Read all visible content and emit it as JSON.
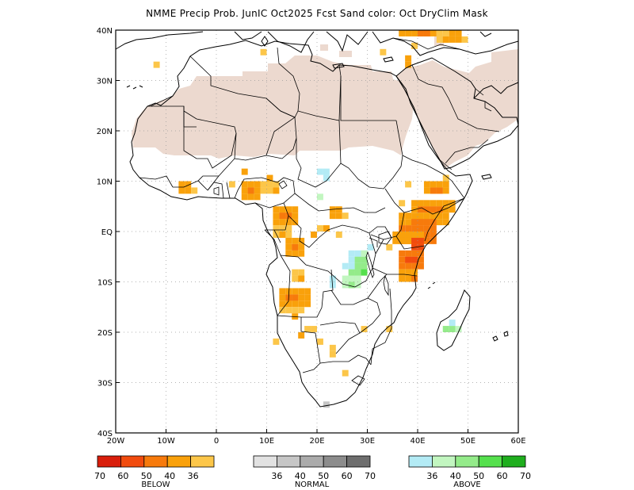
{
  "title": "NMME Precip Prob. JunIC  Oct2025 Fcst  Sand color: Oct DryClim Mask",
  "map": {
    "lon_range": [
      -20,
      60
    ],
    "lat_range": [
      -40,
      40
    ],
    "x_ticks": [
      {
        "value": -20,
        "label": "20W"
      },
      {
        "value": -10,
        "label": "10W"
      },
      {
        "value": 0,
        "label": "0"
      },
      {
        "value": 10,
        "label": "10E"
      },
      {
        "value": 20,
        "label": "20E"
      },
      {
        "value": 30,
        "label": "30E"
      },
      {
        "value": 40,
        "label": "40E"
      },
      {
        "value": 50,
        "label": "50E"
      },
      {
        "value": 60,
        "label": "60E"
      }
    ],
    "y_ticks": [
      {
        "value": 40,
        "label": "40N"
      },
      {
        "value": 30,
        "label": "30N"
      },
      {
        "value": 20,
        "label": "20N"
      },
      {
        "value": 10,
        "label": "10N"
      },
      {
        "value": 0,
        "label": "EQ"
      },
      {
        "value": -10,
        "label": "10S"
      },
      {
        "value": -20,
        "label": "20S"
      },
      {
        "value": -30,
        "label": "30S"
      },
      {
        "value": -40,
        "label": "40S"
      }
    ],
    "colors": {
      "dry_mask": "#ecd9cf",
      "border": "#000000",
      "grid": "#9a9a9a"
    }
  },
  "legend": {
    "below": {
      "title": "BELOW",
      "labels": [
        "70",
        "60",
        "50",
        "40",
        "36"
      ],
      "colors": [
        "#d91e0b",
        "#f14b0e",
        "#f77a0c",
        "#f9a10b",
        "#fcc649"
      ]
    },
    "normal": {
      "title": "NORMAL",
      "labels": [
        "36",
        "40",
        "50",
        "60",
        "70"
      ],
      "colors": [
        "#e2e2e2",
        "#c6c6c6",
        "#ababab",
        "#8c8c8c",
        "#6e6e6e"
      ]
    },
    "above": {
      "title": "ABOVE",
      "labels": [
        "36",
        "40",
        "50",
        "60",
        "70"
      ],
      "colors": [
        "#b3ebf5",
        "#c2f6c0",
        "#94eb8a",
        "#55e04d",
        "#1fae1e"
      ]
    }
  }
}
